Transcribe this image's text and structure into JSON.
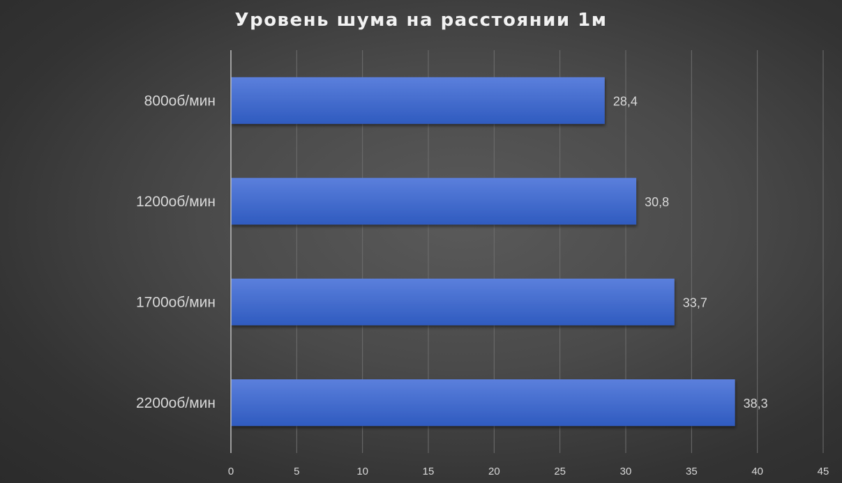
{
  "chart_data": {
    "type": "bar",
    "orientation": "horizontal",
    "title": "Уровень шума на расстоянии 1м",
    "categories": [
      "800об/мин",
      "1200об/мин",
      "1700об/мин",
      "2200об/мин"
    ],
    "values": [
      28.4,
      30.8,
      33.7,
      38.3
    ],
    "value_labels": [
      "28,4",
      "30,8",
      "33,7",
      "38,3"
    ],
    "xlim": [
      0,
      45
    ],
    "xticks": [
      0,
      5,
      10,
      15,
      20,
      25,
      30,
      35,
      40,
      45
    ],
    "xtick_labels": [
      "0",
      "5",
      "10",
      "15",
      "20",
      "25",
      "30",
      "35",
      "40",
      "45"
    ],
    "grid": true,
    "legend": "none",
    "colors": {
      "bar_top": "#5b7fdc",
      "bar_bottom": "#2f5bbf",
      "background": "#4a4a4a",
      "text": "#d9d9d9",
      "gridline": "#6e6e6e",
      "axis": "#bfbfbf"
    }
  }
}
